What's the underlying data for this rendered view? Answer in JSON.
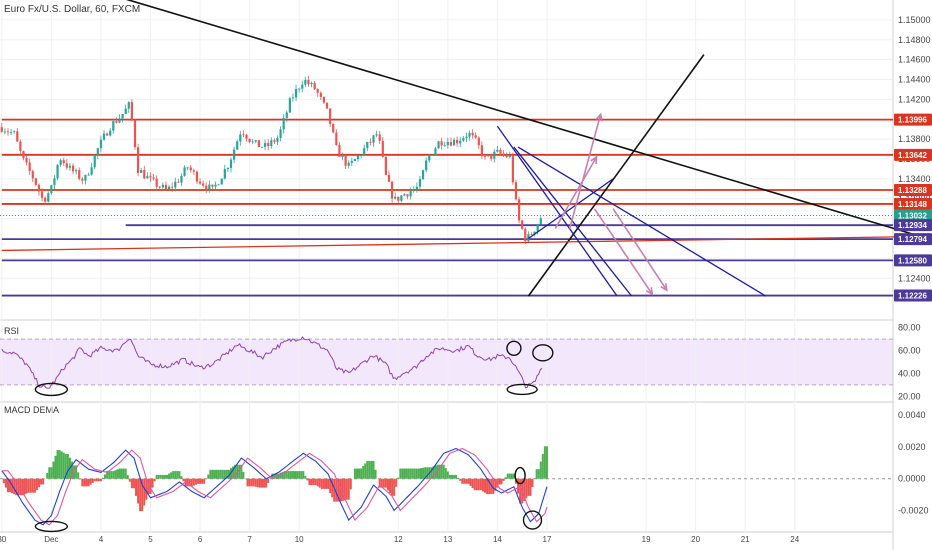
{
  "title": "Euro Fx/U.S. Dollar, 60, FXCM",
  "colors": {
    "up": "#26a69a",
    "down": "#ef5350",
    "resistance": "#d9341f",
    "support": "#4b3a9c",
    "trend": "#111111",
    "channel": "#1a1aa8",
    "arrow": "#c77fb0",
    "rsi": "#8e44ad",
    "rsi_band": "#f3e8fb",
    "macd": "#1e40d8",
    "signal": "#e056a0",
    "hist_pos": "#4caf50",
    "hist_neg": "#ef5350",
    "last_price": "#2a9d8f"
  },
  "chart_data": [
    {
      "type": "candlestick",
      "name": "price",
      "ylim": [
        1.12,
        1.152
      ],
      "yticks": [
        1.124,
        1.126,
        1.128,
        1.13,
        1.132,
        1.134,
        1.136,
        1.138,
        1.14,
        1.142,
        1.144,
        1.146,
        1.148,
        1.15
      ],
      "ytick_labels": [
        "1.12400",
        "1.12600",
        "1.12800",
        "1.13000",
        "1.13200",
        "1.13400",
        "1.13600",
        "1.13800",
        "1.14000",
        "1.14200",
        "1.14400",
        "1.14600",
        "1.14800",
        "1.15000"
      ],
      "xlim": [
        0,
        430
      ],
      "xticks": [
        {
          "x": 0,
          "label": "30"
        },
        {
          "x": 24,
          "label": "Dec"
        },
        {
          "x": 48,
          "label": "4"
        },
        {
          "x": 72,
          "label": "5"
        },
        {
          "x": 96,
          "label": "6"
        },
        {
          "x": 120,
          "label": "7"
        },
        {
          "x": 144,
          "label": "10"
        },
        {
          "x": 192,
          "label": "12"
        },
        {
          "x": 216,
          "label": "13"
        },
        {
          "x": 240,
          "label": "14"
        },
        {
          "x": 264,
          "label": "17"
        },
        {
          "x": 312,
          "label": "19"
        },
        {
          "x": 336,
          "label": "20"
        },
        {
          "x": 360,
          "label": "21"
        },
        {
          "x": 384,
          "label": "24"
        }
      ],
      "anchors": [
        [
          0,
          1.1392
        ],
        [
          6,
          1.1385
        ],
        [
          10,
          1.136
        ],
        [
          16,
          1.1338
        ],
        [
          20,
          1.1318
        ],
        [
          24,
          1.133
        ],
        [
          28,
          1.1362
        ],
        [
          33,
          1.135
        ],
        [
          40,
          1.1338
        ],
        [
          46,
          1.1368
        ],
        [
          52,
          1.1392
        ],
        [
          58,
          1.1404
        ],
        [
          62,
          1.1415
        ],
        [
          66,
          1.135
        ],
        [
          72,
          1.1338
        ],
        [
          80,
          1.1328
        ],
        [
          86,
          1.134
        ],
        [
          90,
          1.1352
        ],
        [
          96,
          1.1338
        ],
        [
          102,
          1.1328
        ],
        [
          110,
          1.1356
        ],
        [
          116,
          1.139
        ],
        [
          122,
          1.1375
        ],
        [
          128,
          1.1372
        ],
        [
          134,
          1.1382
        ],
        [
          140,
          1.142
        ],
        [
          146,
          1.144
        ],
        [
          152,
          1.143
        ],
        [
          158,
          1.1405
        ],
        [
          162,
          1.137
        ],
        [
          168,
          1.1352
        ],
        [
          174,
          1.1366
        ],
        [
          182,
          1.1386
        ],
        [
          186,
          1.1342
        ],
        [
          190,
          1.1318
        ],
        [
          196,
          1.1326
        ],
        [
          202,
          1.1332
        ],
        [
          206,
          1.136
        ],
        [
          212,
          1.1378
        ],
        [
          220,
          1.1378
        ],
        [
          226,
          1.1386
        ],
        [
          230,
          1.1376
        ],
        [
          234,
          1.136
        ],
        [
          240,
          1.1366
        ],
        [
          246,
          1.1362
        ],
        [
          250,
          1.13
        ],
        [
          254,
          1.1278
        ],
        [
          258,
          1.129
        ],
        [
          262,
          1.1305
        ]
      ],
      "volatility": 0.0009,
      "last_price": 1.13032,
      "price_tags": [
        {
          "value": 1.13996,
          "label": "1.13996",
          "kind": "resistance"
        },
        {
          "value": 1.13642,
          "label": "1.13642",
          "kind": "resistance"
        },
        {
          "value": 1.13288,
          "label": "1.13288",
          "kind": "resistance"
        },
        {
          "value": 1.13148,
          "label": "1.13148",
          "kind": "resistance"
        },
        {
          "value": 1.13032,
          "label": "1.13032",
          "kind": "last_price"
        },
        {
          "value": 1.12934,
          "label": "1.12934",
          "kind": "support"
        },
        {
          "value": 1.12794,
          "label": "1.12794",
          "kind": "support"
        },
        {
          "value": 1.1258,
          "label": "1.12580",
          "kind": "support"
        },
        {
          "value": 1.12226,
          "label": "1.12226",
          "kind": "support"
        }
      ],
      "horizontal_levels": [
        {
          "value": 1.13996,
          "kind": "resistance"
        },
        {
          "value": 1.13642,
          "kind": "resistance"
        },
        {
          "value": 1.13288,
          "kind": "resistance"
        },
        {
          "value": 1.13148,
          "kind": "resistance"
        },
        {
          "value": 1.12934,
          "kind": "support",
          "x_start": 60
        },
        {
          "value": 1.12794,
          "kind": "support"
        },
        {
          "value": 1.1258,
          "kind": "support"
        },
        {
          "value": 1.12226,
          "kind": "support"
        }
      ],
      "drawings": [
        {
          "kind": "trend",
          "from": [
            55,
            1.1524
          ],
          "to": [
            445,
            1.1282
          ]
        },
        {
          "kind": "trend",
          "from": [
            255,
            1.1222
          ],
          "to": [
            340,
            1.1465
          ]
        },
        {
          "kind": "resistance",
          "from": [
            0,
            1.1268
          ],
          "to": [
            445,
            1.1282
          ]
        },
        {
          "kind": "channel",
          "from": [
            240,
            1.1393
          ],
          "to": [
            298,
            1.1222
          ]
        },
        {
          "kind": "channel",
          "from": [
            248,
            1.1372
          ],
          "to": [
            305,
            1.1222
          ]
        },
        {
          "kind": "channel",
          "from": [
            250,
            1.1372
          ],
          "to": [
            370,
            1.1222
          ]
        },
        {
          "kind": "channel",
          "from": [
            255,
            1.128
          ],
          "to": [
            296,
            1.134
          ]
        }
      ],
      "arrows": [
        {
          "from": [
            275,
            1.129
          ],
          "to": [
            290,
            1.1405
          ]
        },
        {
          "from": [
            268,
            1.129
          ],
          "to": [
            288,
            1.1362
          ]
        },
        {
          "from": [
            287,
            1.131
          ],
          "to": [
            315,
            1.1224
          ]
        },
        {
          "from": [
            296,
            1.131
          ],
          "to": [
            322,
            1.1228
          ]
        }
      ]
    },
    {
      "type": "line",
      "name": "RSI",
      "title": "RSI",
      "ylim": [
        15,
        85
      ],
      "band": [
        30,
        70
      ],
      "yticks": [
        20,
        40,
        60,
        80
      ],
      "ytick_labels": [
        "20.00",
        "40.00",
        "60.00",
        "80.00"
      ],
      "anchors": [
        [
          0,
          60
        ],
        [
          6,
          58
        ],
        [
          12,
          48
        ],
        [
          18,
          30
        ],
        [
          22,
          26
        ],
        [
          26,
          34
        ],
        [
          30,
          45
        ],
        [
          34,
          52
        ],
        [
          38,
          62
        ],
        [
          42,
          55
        ],
        [
          48,
          62
        ],
        [
          56,
          60
        ],
        [
          62,
          72
        ],
        [
          66,
          55
        ],
        [
          72,
          48
        ],
        [
          80,
          46
        ],
        [
          88,
          52
        ],
        [
          96,
          45
        ],
        [
          102,
          48
        ],
        [
          108,
          56
        ],
        [
          114,
          65
        ],
        [
          120,
          60
        ],
        [
          126,
          54
        ],
        [
          132,
          62
        ],
        [
          138,
          68
        ],
        [
          146,
          72
        ],
        [
          152,
          66
        ],
        [
          158,
          60
        ],
        [
          162,
          44
        ],
        [
          168,
          40
        ],
        [
          174,
          48
        ],
        [
          180,
          56
        ],
        [
          186,
          48
        ],
        [
          190,
          35
        ],
        [
          194,
          40
        ],
        [
          200,
          45
        ],
        [
          206,
          56
        ],
        [
          212,
          62
        ],
        [
          220,
          60
        ],
        [
          226,
          64
        ],
        [
          230,
          56
        ],
        [
          236,
          52
        ],
        [
          240,
          55
        ],
        [
          246,
          54
        ],
        [
          250,
          42
        ],
        [
          254,
          28
        ],
        [
          258,
          32
        ],
        [
          262,
          48
        ]
      ],
      "volatility": 4
    },
    {
      "type": "line",
      "name": "MACD DEMA",
      "title": "MACD DEMA",
      "ylim": [
        -0.0031,
        0.0047
      ],
      "yticks": [
        -0.002,
        0.0,
        0.002,
        0.004
      ],
      "ytick_labels": [
        "-0.0020",
        "0.0000",
        "0.0020",
        "0.0040"
      ],
      "macd_anchors": [
        [
          0,
          0.0005
        ],
        [
          4,
          -0.0002
        ],
        [
          10,
          -0.0015
        ],
        [
          16,
          -0.0026
        ],
        [
          20,
          -0.0029
        ],
        [
          24,
          -0.0023
        ],
        [
          28,
          -0.0008
        ],
        [
          32,
          0.0005
        ],
        [
          36,
          0.0012
        ],
        [
          42,
          0.0006
        ],
        [
          48,
          0.0004
        ],
        [
          54,
          0.001
        ],
        [
          60,
          0.0018
        ],
        [
          64,
          0.0013
        ],
        [
          68,
          -0.0004
        ],
        [
          72,
          -0.0012
        ],
        [
          80,
          -0.0008
        ],
        [
          86,
          -0.0002
        ],
        [
          92,
          -0.0008
        ],
        [
          98,
          -0.0012
        ],
        [
          104,
          -0.0005
        ],
        [
          110,
          0.0002
        ],
        [
          116,
          0.0013
        ],
        [
          122,
          0.0007
        ],
        [
          128,
          0.0
        ],
        [
          134,
          0.0004
        ],
        [
          140,
          0.001
        ],
        [
          146,
          0.0016
        ],
        [
          152,
          0.0011
        ],
        [
          158,
          0.0003
        ],
        [
          164,
          -0.0015
        ],
        [
          168,
          -0.0026
        ],
        [
          174,
          -0.0018
        ],
        [
          180,
          -0.0004
        ],
        [
          186,
          -0.0011
        ],
        [
          190,
          -0.002
        ],
        [
          196,
          -0.0012
        ],
        [
          202,
          -0.0004
        ],
        [
          208,
          0.0005
        ],
        [
          214,
          0.0016
        ],
        [
          220,
          0.0019
        ],
        [
          226,
          0.0015
        ],
        [
          232,
          0.0006
        ],
        [
          238,
          -0.0006
        ],
        [
          242,
          -0.0009
        ],
        [
          248,
          -0.0005
        ],
        [
          252,
          -0.0018
        ],
        [
          256,
          -0.0027
        ],
        [
          260,
          -0.0022
        ],
        [
          264,
          -0.0005
        ]
      ],
      "signal_lag": 3,
      "histogram": true
    }
  ]
}
